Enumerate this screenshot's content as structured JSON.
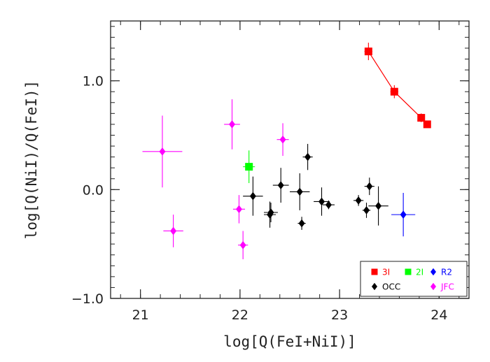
{
  "chart_data": {
    "type": "scatter",
    "xlabel": "log[Q(FeI+NiI)]",
    "ylabel": "log[Q(NiI)/Q(FeI)]",
    "xlim": [
      20.7,
      24.3
    ],
    "ylim": [
      -1.0,
      1.55
    ],
    "x_ticks": [
      {
        "value": 21,
        "label": "21"
      },
      {
        "value": 22,
        "label": "22"
      },
      {
        "value": 23,
        "label": "23"
      },
      {
        "value": 24,
        "label": "24"
      }
    ],
    "y_ticks": [
      {
        "value": -1.0,
        "label": "−1.0"
      },
      {
        "value": 0.0,
        "label": "0.0"
      },
      {
        "value": 1.0,
        "label": "1.0"
      }
    ],
    "x_minor_step": 0.2,
    "y_minor_step": 0.1,
    "legend_position": "bottom-right",
    "series": [
      {
        "name": "3I",
        "color": "#ff0000",
        "marker": "square",
        "connected": true,
        "points": [
          {
            "x": 23.29,
            "y": 1.27,
            "xerr": 0.04,
            "yerr": 0.08
          },
          {
            "x": 23.55,
            "y": 0.9,
            "xerr": 0.04,
            "yerr": 0.06
          },
          {
            "x": 23.82,
            "y": 0.66,
            "xerr": 0.03,
            "yerr": 0.04
          },
          {
            "x": 23.88,
            "y": 0.6,
            "xerr": 0.03,
            "yerr": 0.03
          }
        ]
      },
      {
        "name": "2I",
        "color": "#00ff00",
        "marker": "square",
        "connected": false,
        "points": [
          {
            "x": 22.09,
            "y": 0.21,
            "xerr": 0.06,
            "yerr": 0.15
          }
        ]
      },
      {
        "name": "R2",
        "color": "#0000ff",
        "marker": "diamond",
        "connected": false,
        "points": [
          {
            "x": 23.64,
            "y": -0.23,
            "xerr": 0.12,
            "yerr": 0.2
          }
        ]
      },
      {
        "name": "OCC",
        "color": "#000000",
        "marker": "diamond",
        "connected": false,
        "points": [
          {
            "x": 22.13,
            "y": -0.06,
            "xerr": 0.1,
            "yerr": 0.18
          },
          {
            "x": 22.3,
            "y": -0.23,
            "xerr": 0.06,
            "yerr": 0.12
          },
          {
            "x": 22.31,
            "y": -0.21,
            "xerr": 0.07,
            "yerr": 0.09
          },
          {
            "x": 22.41,
            "y": 0.04,
            "xerr": 0.08,
            "yerr": 0.16
          },
          {
            "x": 22.6,
            "y": -0.02,
            "xerr": 0.1,
            "yerr": 0.17
          },
          {
            "x": 22.62,
            "y": -0.31,
            "xerr": 0.04,
            "yerr": 0.06
          },
          {
            "x": 22.68,
            "y": 0.3,
            "xerr": 0.05,
            "yerr": 0.12
          },
          {
            "x": 22.82,
            "y": -0.11,
            "xerr": 0.08,
            "yerr": 0.13
          },
          {
            "x": 22.89,
            "y": -0.14,
            "xerr": 0.06,
            "yerr": 0.04
          },
          {
            "x": 23.19,
            "y": -0.1,
            "xerr": 0.05,
            "yerr": 0.05
          },
          {
            "x": 23.27,
            "y": -0.19,
            "xerr": 0.04,
            "yerr": 0.07
          },
          {
            "x": 23.3,
            "y": 0.03,
            "xerr": 0.05,
            "yerr": 0.08
          },
          {
            "x": 23.39,
            "y": -0.15,
            "xerr": 0.1,
            "yerr": 0.18
          }
        ]
      },
      {
        "name": "JFC",
        "color": "#ff00ff",
        "marker": "diamond",
        "connected": false,
        "points": [
          {
            "x": 21.22,
            "y": 0.35,
            "xerr": 0.2,
            "yerr": 0.33
          },
          {
            "x": 21.33,
            "y": -0.38,
            "xerr": 0.1,
            "yerr": 0.15
          },
          {
            "x": 21.92,
            "y": 0.6,
            "xerr": 0.08,
            "yerr": 0.23
          },
          {
            "x": 21.99,
            "y": -0.18,
            "xerr": 0.06,
            "yerr": 0.13
          },
          {
            "x": 22.03,
            "y": -0.51,
            "xerr": 0.05,
            "yerr": 0.13
          },
          {
            "x": 22.43,
            "y": 0.46,
            "xerr": 0.06,
            "yerr": 0.15
          }
        ]
      }
    ]
  }
}
